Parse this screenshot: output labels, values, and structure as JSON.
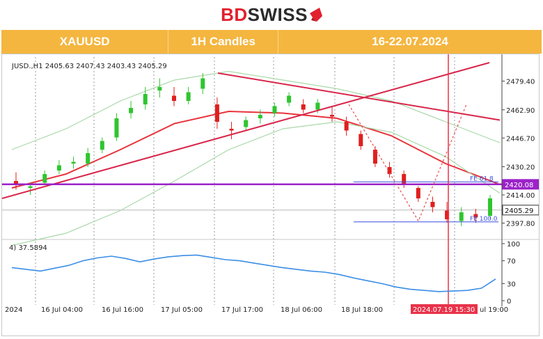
{
  "brand": {
    "bd": "BD",
    "swiss": "SWISS",
    "bd_color": "#e2202e",
    "swiss_color": "#2b2b2b"
  },
  "header": {
    "symbol": "XAUUSD",
    "timeframe": "1H Candles",
    "period": "16-22.07.2024",
    "bg_color": "#f4b63f"
  },
  "chart_data": {
    "type": "candlestick",
    "info_line": "JUSD.,H1  2405.63 2407.43 2403.43 2405.29",
    "y_ticks": [
      2479.4,
      2462.9,
      2446.7,
      2430.2,
      2414.0,
      2397.8
    ],
    "y_tick_labels": [
      "2479.40",
      "2462.90",
      "2446.70",
      "2430.20",
      "2414.00",
      "2397.80"
    ],
    "ylim": [
      2390,
      2490
    ],
    "price_tags": [
      {
        "value": 2420.08,
        "label": "2420.08",
        "color": "#9b22c8"
      },
      {
        "value": 2405.29,
        "label": "2405.29",
        "color": "#111111"
      }
    ],
    "x_labels": [
      "2024",
      "16 Jul 04:00",
      "16 Jul 16:00",
      "17 Jul 05:00",
      "17 Jul 17:00",
      "18 Jul 06:00",
      "18 Jul 18:00",
      "2024.07.19 15:30",
      "ul 19:00"
    ],
    "highlight_time": "2024.07.19 15:30",
    "n_bars": 100,
    "candles_ohlc_sampled": [
      [
        2422,
        2427,
        2417,
        2420
      ],
      [
        2418,
        2421,
        2414,
        2419
      ],
      [
        2421,
        2428,
        2420,
        2426
      ],
      [
        2428,
        2434,
        2426,
        2431
      ],
      [
        2432,
        2436,
        2429,
        2433
      ],
      [
        2432,
        2441,
        2430,
        2438
      ],
      [
        2440,
        2447,
        2438,
        2445
      ],
      [
        2447,
        2461,
        2445,
        2458
      ],
      [
        2461,
        2468,
        2458,
        2464
      ],
      [
        2466,
        2476,
        2463,
        2472
      ],
      [
        2474,
        2481,
        2470,
        2476
      ],
      [
        2471,
        2476,
        2465,
        2468
      ],
      [
        2468,
        2476,
        2466,
        2473
      ],
      [
        2475,
        2484,
        2472,
        2481
      ],
      [
        2466,
        2470,
        2452,
        2456
      ],
      [
        2452,
        2456,
        2446,
        2451
      ],
      [
        2453,
        2459,
        2451,
        2457
      ],
      [
        2458,
        2463,
        2455,
        2460
      ],
      [
        2461,
        2467,
        2459,
        2465
      ],
      [
        2467,
        2473,
        2465,
        2471
      ],
      [
        2466,
        2469,
        2461,
        2463
      ],
      [
        2463,
        2469,
        2461,
        2467
      ],
      [
        2460,
        2465,
        2456,
        2459
      ],
      [
        2456,
        2459,
        2448,
        2451
      ],
      [
        2449,
        2451,
        2440,
        2442
      ],
      [
        2440,
        2442,
        2430,
        2432
      ],
      [
        2430,
        2433,
        2424,
        2426
      ],
      [
        2426,
        2428,
        2418,
        2420
      ],
      [
        2418,
        2419,
        2410,
        2412
      ],
      [
        2410,
        2413,
        2404,
        2407
      ],
      [
        2405,
        2410,
        2398,
        2400
      ],
      [
        2399,
        2407,
        2396,
        2404
      ],
      [
        2403,
        2406,
        2398,
        2401
      ],
      [
        2402,
        2414,
        2400,
        2412
      ]
    ],
    "lines": [
      {
        "name": "",
        "color": "#e8333c",
        "values": [
          2418,
          2426,
          2440,
          2455,
          2462,
          2461,
          2458,
          2448,
          2432,
          2420
        ]
      },
      {
        "name": "",
        "color": "#a8d8a8",
        "values": [
          2385,
          2392,
          2405,
          2422,
          2440,
          2452,
          2456,
          2450,
          2436,
          2415
        ]
      },
      {
        "name": "",
        "color": "#a8d8a8",
        "values": [
          2440,
          2452,
          2468,
          2480,
          2485,
          2480,
          2475,
          2468,
          2456,
          2444
        ]
      }
    ],
    "fibonacci": [
      {
        "label": "FE 61.8",
        "value": 2421.5
      },
      {
        "label": "FE 100.0",
        "value": 2398.5
      }
    ],
    "indicator": {
      "label": "4) 37.5894",
      "y_ticks": [
        100,
        70,
        30,
        0
      ],
      "ylim": [
        0,
        100
      ],
      "color": "#3a8ee6",
      "values": [
        58,
        55,
        52,
        57,
        62,
        70,
        75,
        78,
        74,
        68,
        73,
        77,
        79,
        80,
        76,
        72,
        70,
        66,
        62,
        58,
        55,
        52,
        50,
        46,
        40,
        35,
        30,
        24,
        20,
        18,
        16,
        17,
        18,
        22,
        38
      ]
    }
  }
}
